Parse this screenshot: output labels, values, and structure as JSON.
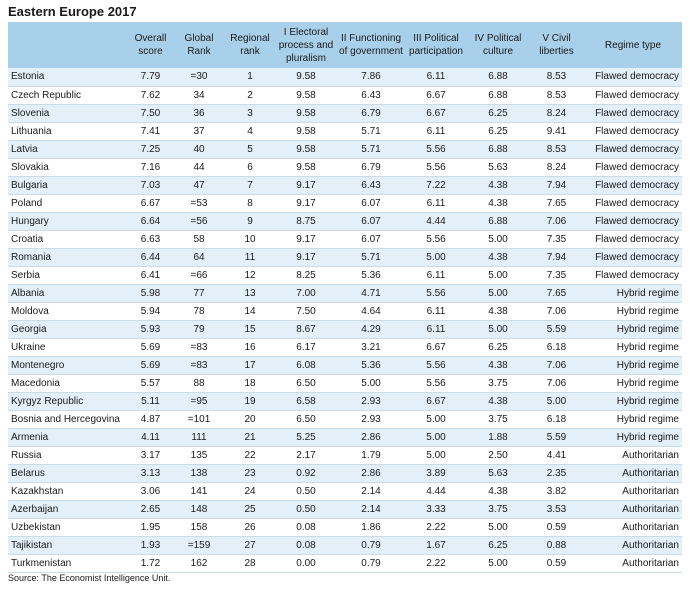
{
  "title": "Eastern Europe 2017",
  "table": {
    "header": [
      "",
      "Overall score",
      "Global Rank",
      "Regional rank",
      "I Electoral process and pluralism",
      "II Functioning of government",
      "III Political participation",
      "IV Political culture",
      "V Civil liberties",
      "Regime type"
    ],
    "rows": [
      [
        "Estonia",
        "7.79",
        "=30",
        "1",
        "9.58",
        "7.86",
        "6.11",
        "6.88",
        "8.53",
        "Flawed democracy"
      ],
      [
        "Czech Republic",
        "7.62",
        "34",
        "2",
        "9.58",
        "6.43",
        "6.67",
        "6.88",
        "8.53",
        "Flawed democracy"
      ],
      [
        "Slovenia",
        "7.50",
        "36",
        "3",
        "9.58",
        "6.79",
        "6.67",
        "6.25",
        "8.24",
        "Flawed democracy"
      ],
      [
        "Lithuania",
        "7.41",
        "37",
        "4",
        "9.58",
        "5.71",
        "6.11",
        "6.25",
        "9.41",
        "Flawed democracy"
      ],
      [
        "Latvia",
        "7.25",
        "40",
        "5",
        "9.58",
        "5.71",
        "5.56",
        "6.88",
        "8.53",
        "Flawed democracy"
      ],
      [
        "Slovakia",
        "7.16",
        "44",
        "6",
        "9.58",
        "6.79",
        "5.56",
        "5.63",
        "8.24",
        "Flawed democracy"
      ],
      [
        "Bulgaria",
        "7.03",
        "47",
        "7",
        "9.17",
        "6.43",
        "7.22",
        "4.38",
        "7.94",
        "Flawed democracy"
      ],
      [
        "Poland",
        "6.67",
        "=53",
        "8",
        "9.17",
        "6.07",
        "6.11",
        "4.38",
        "7.65",
        "Flawed democracy"
      ],
      [
        "Hungary",
        "6.64",
        "=56",
        "9",
        "8.75",
        "6.07",
        "4.44",
        "6.88",
        "7.06",
        "Flawed democracy"
      ],
      [
        "Croatia",
        "6.63",
        "58",
        "10",
        "9.17",
        "6.07",
        "5.56",
        "5.00",
        "7.35",
        "Flawed democracy"
      ],
      [
        "Romania",
        "6.44",
        "64",
        "11",
        "9.17",
        "5.71",
        "5.00",
        "4.38",
        "7.94",
        "Flawed democracy"
      ],
      [
        "Serbia",
        "6.41",
        "=66",
        "12",
        "8.25",
        "5.36",
        "6.11",
        "5.00",
        "7.35",
        "Flawed democracy"
      ],
      [
        "Albania",
        "5.98",
        "77",
        "13",
        "7.00",
        "4.71",
        "5.56",
        "5.00",
        "7.65",
        "Hybrid regime"
      ],
      [
        "Moldova",
        "5.94",
        "78",
        "14",
        "7.50",
        "4.64",
        "6.11",
        "4.38",
        "7.06",
        "Hybrid regime"
      ],
      [
        "Georgia",
        "5.93",
        "79",
        "15",
        "8.67",
        "4.29",
        "6.11",
        "5.00",
        "5.59",
        "Hybrid regime"
      ],
      [
        "Ukraine",
        "5.69",
        "=83",
        "16",
        "6.17",
        "3.21",
        "6.67",
        "6.25",
        "6.18",
        "Hybrid regime"
      ],
      [
        "Montenegro",
        "5.69",
        "=83",
        "17",
        "6.08",
        "5.36",
        "5.56",
        "4.38",
        "7.06",
        "Hybrid regime"
      ],
      [
        "Macedonia",
        "5.57",
        "88",
        "18",
        "6.50",
        "5.00",
        "5.56",
        "3.75",
        "7.06",
        "Hybrid regime"
      ],
      [
        "Kyrgyz Republic",
        "5.11",
        "=95",
        "19",
        "6.58",
        "2.93",
        "6.67",
        "4.38",
        "5.00",
        "Hybrid regime"
      ],
      [
        "Bosnia and Hercegovina",
        "4.87",
        "=101",
        "20",
        "6.50",
        "2.93",
        "5.00",
        "3.75",
        "6.18",
        "Hybrid regime"
      ],
      [
        "Armenia",
        "4.11",
        "111",
        "21",
        "5.25",
        "2.86",
        "5.00",
        "1.88",
        "5.59",
        "Hybrid regime"
      ],
      [
        "Russia",
        "3.17",
        "135",
        "22",
        "2.17",
        "1.79",
        "5.00",
        "2.50",
        "4.41",
        "Authoritarian"
      ],
      [
        "Belarus",
        "3.13",
        "138",
        "23",
        "0.92",
        "2.86",
        "3.89",
        "5.63",
        "2.35",
        "Authoritarian"
      ],
      [
        "Kazakhstan",
        "3.06",
        "141",
        "24",
        "0.50",
        "2.14",
        "4.44",
        "4.38",
        "3.82",
        "Authoritarian"
      ],
      [
        "Azerbaijan",
        "2.65",
        "148",
        "25",
        "0.50",
        "2.14",
        "3.33",
        "3.75",
        "3.53",
        "Authoritarian"
      ],
      [
        "Uzbekistan",
        "1.95",
        "158",
        "26",
        "0.08",
        "1.86",
        "2.22",
        "5.00",
        "0.59",
        "Authoritarian"
      ],
      [
        "Tajikistan",
        "1.93",
        "=159",
        "27",
        "0.08",
        "0.79",
        "1.67",
        "6.25",
        "0.88",
        "Authoritarian"
      ],
      [
        "Turkmenistan",
        "1.72",
        "162",
        "28",
        "0.00",
        "0.79",
        "2.22",
        "5.00",
        "0.59",
        "Authoritarian"
      ]
    ]
  },
  "source": "Source: The Economist Intelligence Unit."
}
